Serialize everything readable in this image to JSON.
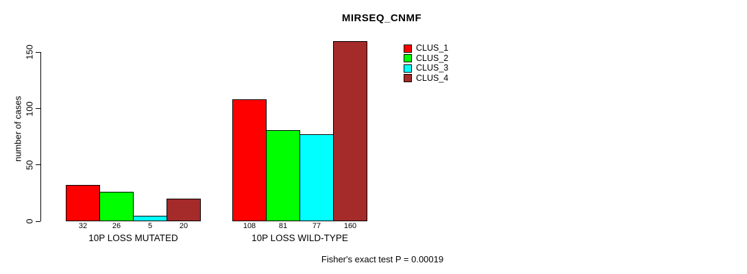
{
  "chart_data": {
    "type": "bar",
    "title": "MIRSEQ_CNMF",
    "ylabel": "number of cases",
    "xlabel": "",
    "categories": [
      "10P LOSS MUTATED",
      "10P LOSS WILD-TYPE"
    ],
    "series": [
      {
        "name": "CLUS_1",
        "color": "#FF0000",
        "values": [
          32,
          108
        ]
      },
      {
        "name": "CLUS_2",
        "color": "#00FF00",
        "values": [
          26,
          81
        ]
      },
      {
        "name": "CLUS_3",
        "color": "#00FFFF",
        "values": [
          5,
          77
        ]
      },
      {
        "name": "CLUS_4",
        "color": "#A52A2A",
        "values": [
          20,
          160
        ]
      }
    ],
    "bar_value_labels": [
      [
        32,
        26,
        5,
        20
      ],
      [
        108,
        81,
        77,
        160
      ]
    ],
    "y_ticks": [
      0,
      50,
      100,
      150
    ],
    "ylim": [
      0,
      160
    ],
    "grid": false,
    "legend_position": "top-right",
    "annotation": "Fisher's exact test P = 0.00019"
  }
}
